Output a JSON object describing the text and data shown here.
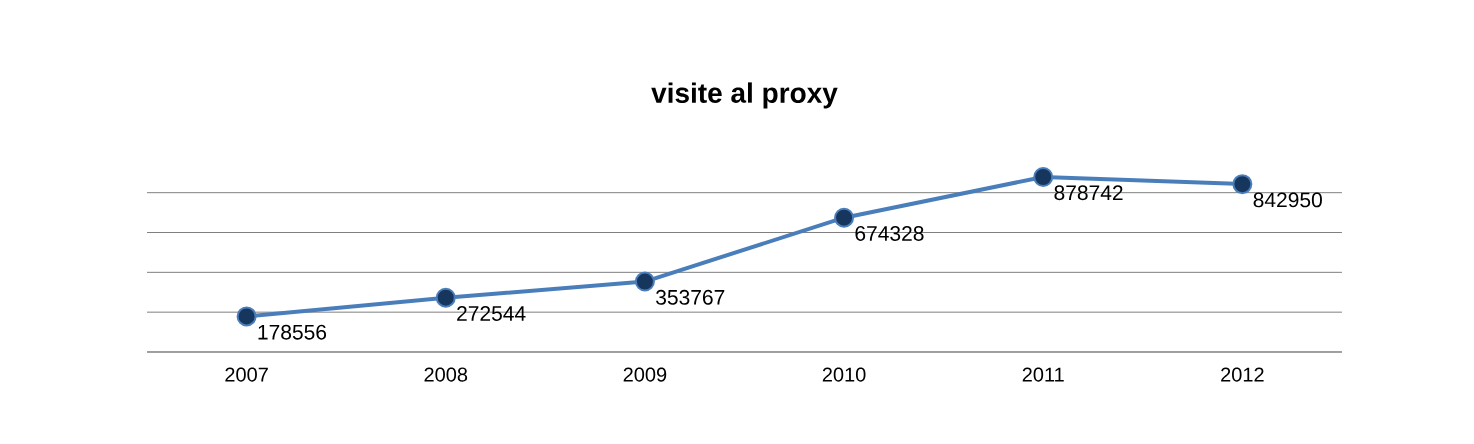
{
  "chart_data": {
    "type": "line",
    "title": "visite al proxy",
    "categories": [
      "2007",
      "2008",
      "2009",
      "2010",
      "2011",
      "2012"
    ],
    "series": [
      {
        "color": "#4a7ebb",
        "values": [
          178556,
          272544,
          353767,
          674328,
          878742,
          842950
        ]
      }
    ],
    "tick_labels": "x",
    "grid": "y",
    "marker": "circle",
    "line_style": "solid",
    "data_labels": true
  }
}
